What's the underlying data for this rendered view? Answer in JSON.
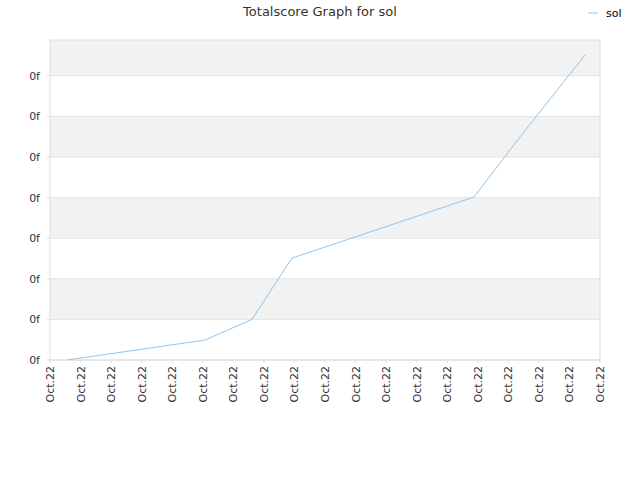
{
  "chart_data": {
    "type": "line",
    "title": "Totalscore Graph for sol",
    "x": [
      0.56,
      5.07,
      6.61,
      7.92,
      13.87,
      15.38,
      17.51
    ],
    "series": [
      {
        "name": "sol",
        "color": "#8ec5f0",
        "values": [
          0,
          0.49,
          1.0,
          2.51,
          4.01,
          5.49,
          7.51
        ]
      }
    ],
    "xlim": [
      0,
      18
    ],
    "xticks": [
      {
        "value": 0,
        "label": "Oct.22"
      },
      {
        "value": 1,
        "label": "Oct.22"
      },
      {
        "value": 2,
        "label": "Oct.22"
      },
      {
        "value": 3,
        "label": "Oct.22"
      },
      {
        "value": 4,
        "label": "Oct.22"
      },
      {
        "value": 5,
        "label": "Oct.22"
      },
      {
        "value": 6,
        "label": "Oct.22"
      },
      {
        "value": 7,
        "label": "Oct.22"
      },
      {
        "value": 8,
        "label": "Oct.22"
      },
      {
        "value": 9,
        "label": "Oct.22"
      },
      {
        "value": 10,
        "label": "Oct.22"
      },
      {
        "value": 11,
        "label": "Oct.22"
      },
      {
        "value": 12,
        "label": "Oct.22"
      },
      {
        "value": 13,
        "label": "Oct.22"
      },
      {
        "value": 14,
        "label": "Oct.22"
      },
      {
        "value": 15,
        "label": "Oct.22"
      },
      {
        "value": 16,
        "label": "Oct.22"
      },
      {
        "value": 17,
        "label": "Oct.22"
      },
      {
        "value": 18,
        "label": "Oct.22"
      }
    ],
    "ylim": [
      0,
      7.88
    ],
    "yticks": [
      {
        "value": 0,
        "label": "0f"
      },
      {
        "value": 1,
        "label": "0f"
      },
      {
        "value": 2,
        "label": "0f"
      },
      {
        "value": 3,
        "label": "0f"
      },
      {
        "value": 4,
        "label": "0f"
      },
      {
        "value": 5,
        "label": "0f"
      },
      {
        "value": 6,
        "label": "0f"
      },
      {
        "value": 7,
        "label": "0f"
      }
    ],
    "grid": true,
    "legend": "top-right"
  }
}
